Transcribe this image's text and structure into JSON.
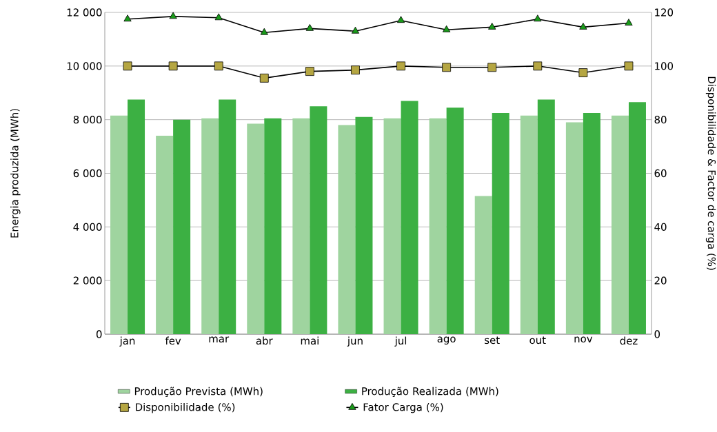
{
  "chart_data": {
    "type": "bar",
    "ylabel": "Energia produzida  (MWh)",
    "y2label": "Disponibilidade & Factor de carga (%)",
    "categories": [
      "jan",
      "fev",
      "mar",
      "abr",
      "mai",
      "jun",
      "jul",
      "ago",
      "set",
      "out",
      "nov",
      "dez"
    ],
    "series": [
      {
        "name": "Produção Prevista (MWh)",
        "color": "#9fd49f",
        "values": [
          8150,
          7400,
          8050,
          7850,
          8050,
          7800,
          8050,
          8050,
          5150,
          8150,
          7900,
          8150
        ]
      },
      {
        "name": "Produção Realizada (MWh)",
        "color": "#3cb043",
        "values": [
          8750,
          8000,
          8750,
          8050,
          8500,
          8100,
          8700,
          8450,
          8250,
          8750,
          8250,
          8650
        ]
      },
      {
        "name": "Disponibilidade (%)",
        "type": "line",
        "axis": "y2",
        "marker": "square",
        "color": "#b5a642",
        "values": [
          100,
          100,
          100,
          95.5,
          98,
          98.5,
          100,
          99.5,
          99.5,
          100,
          97.5,
          100
        ]
      },
      {
        "name": "Fator Carga (%)",
        "type": "line",
        "axis": "y2",
        "marker": "triangle",
        "color": "#1a9a1a",
        "values": [
          117.5,
          118.5,
          118,
          112.5,
          114,
          113,
          117,
          113.5,
          114.5,
          117.5,
          114.5,
          116
        ]
      }
    ],
    "ylim": [
      0,
      12000
    ],
    "yticks": [
      {
        "value": 0,
        "label": "0"
      },
      {
        "value": 2000,
        "label": "2 000"
      },
      {
        "value": 4000,
        "label": "4 000"
      },
      {
        "value": 6000,
        "label": "6 000"
      },
      {
        "value": 8000,
        "label": "8 000"
      },
      {
        "value": 10000,
        "label": "10 000"
      },
      {
        "value": 12000,
        "label": "12 000"
      }
    ],
    "y2lim": [
      0,
      120
    ],
    "y2ticks": [
      0,
      20,
      40,
      60,
      80,
      100,
      120
    ],
    "grid": "y",
    "legend": "bottom"
  }
}
